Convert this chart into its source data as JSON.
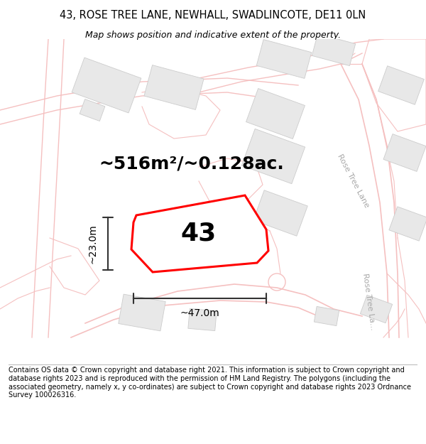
{
  "title_line1": "43, ROSE TREE LANE, NEWHALL, SWADLINCOTE, DE11 0LN",
  "title_line2": "Map shows position and indicative extent of the property.",
  "area_text": "~516m²/~0.128ac.",
  "plot_number": "43",
  "dim_width": "~47.0m",
  "dim_height": "~23.0m",
  "road_label_1": "Rose Tree Lane",
  "road_label_2": "Rose Tree La...",
  "footer_text": "Contains OS data © Crown copyright and database right 2021. This information is subject to Crown copyright and database rights 2023 and is reproduced with the permission of HM Land Registry. The polygons (including the associated geometry, namely x, y co-ordinates) are subject to Crown copyright and database rights 2023 Ordnance Survey 100026316.",
  "bg_color": "#ffffff",
  "map_bg": "#ffffff",
  "building_color": "#e8e8e8",
  "road_color": "#f5c0c0",
  "plot_color": "#ff0000",
  "dim_color": "#333333",
  "title_fontsize": 10.5,
  "subtitle_fontsize": 9,
  "area_fontsize": 18,
  "number_fontsize": 26,
  "dim_label_fontsize": 10,
  "footer_fontsize": 7,
  "road_label_color": "#aaaaaa",
  "road_label_fontsize": 8
}
